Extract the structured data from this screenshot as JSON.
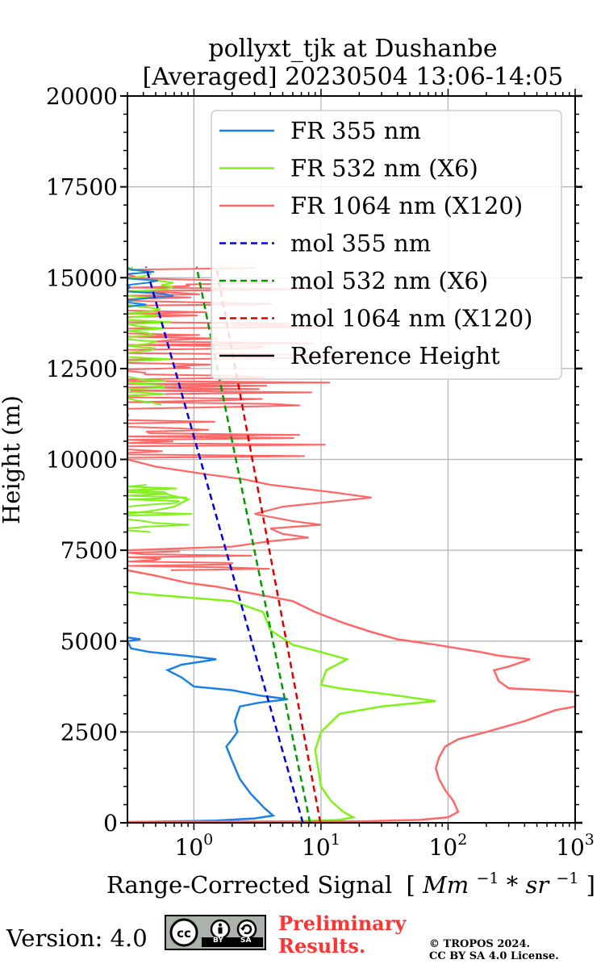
{
  "chart_data": {
    "type": "line",
    "title": [
      "pollyxt_tjk at Dushanbe",
      "[Averaged] 20230504 13:06-14:05"
    ],
    "xlabel": "Range-Corrected Signal",
    "xlabel_math": {
      "prefix": "[",
      "body": "Mm",
      "sup1": "−1",
      "mid": " * sr",
      "sup2": "−1",
      "suffix": "]"
    },
    "ylabel": "Height (m)",
    "xscale": "log",
    "xlim": [
      0.3,
      1000
    ],
    "ylim": [
      0,
      20000
    ],
    "xticks": [
      {
        "base": "10",
        "exp": "0",
        "value": 1
      },
      {
        "base": "10",
        "exp": "1",
        "value": 10
      },
      {
        "base": "10",
        "exp": "2",
        "value": 100
      },
      {
        "base": "10",
        "exp": "3",
        "value": 1000
      }
    ],
    "yticks": [
      "0",
      "2500",
      "5000",
      "7500",
      "10000",
      "12500",
      "15000",
      "17500",
      "20000"
    ],
    "grid": true,
    "legend_position": "top-right",
    "series": [
      {
        "name": "FR 355 nm",
        "color": "#1a80e6",
        "style": "solid",
        "points": [
          [
            0.3,
            20
          ],
          [
            1.5,
            60
          ],
          [
            3.0,
            120
          ],
          [
            4.2,
            200
          ],
          [
            3.6,
            400
          ],
          [
            2.8,
            800
          ],
          [
            2.3,
            1200
          ],
          [
            2.0,
            1700
          ],
          [
            1.8,
            2100
          ],
          [
            2.0,
            2300
          ],
          [
            2.2,
            2500
          ],
          [
            2.1,
            2800
          ],
          [
            2.3,
            3200
          ],
          [
            3.2,
            3300
          ],
          [
            5.5,
            3400
          ],
          [
            3.3,
            3500
          ],
          [
            2.0,
            3650
          ],
          [
            1.0,
            3750
          ],
          [
            0.8,
            4000
          ],
          [
            0.62,
            4200
          ],
          [
            0.8,
            4350
          ],
          [
            1.5,
            4500
          ],
          [
            0.85,
            4600
          ],
          [
            0.45,
            4700
          ],
          [
            0.32,
            4800
          ],
          [
            0.3,
            5000
          ],
          [
            0.38,
            5050
          ],
          [
            0.3,
            5100
          ]
        ]
      },
      {
        "name": "FR 532 nm (X6)",
        "color": "#80f21a",
        "style": "solid",
        "points": [
          [
            0.3,
            20
          ],
          [
            6,
            40
          ],
          [
            14,
            80
          ],
          [
            18,
            150
          ],
          [
            15,
            300
          ],
          [
            12,
            600
          ],
          [
            10,
            1000
          ],
          [
            9.5,
            1500
          ],
          [
            9,
            2000
          ],
          [
            10,
            2500
          ],
          [
            14,
            3000
          ],
          [
            30,
            3200
          ],
          [
            80,
            3350
          ],
          [
            40,
            3500
          ],
          [
            14,
            3700
          ],
          [
            10,
            3800
          ],
          [
            11,
            4200
          ],
          [
            16,
            4500
          ],
          [
            10,
            4700
          ],
          [
            6,
            4900
          ],
          [
            4,
            5300
          ],
          [
            3.5,
            5800
          ],
          [
            2,
            6100
          ],
          [
            0.9,
            6200
          ],
          [
            0.4,
            6300
          ],
          [
            0.3,
            6350
          ]
        ]
      },
      {
        "name": "FR 1064 nm (X120)",
        "color": "#ff6666",
        "style": "solid",
        "points": [
          [
            0.3,
            20
          ],
          [
            20,
            40
          ],
          [
            60,
            80
          ],
          [
            100,
            150
          ],
          [
            120,
            300
          ],
          [
            110,
            600
          ],
          [
            95,
            900
          ],
          [
            85,
            1200
          ],
          [
            80,
            1500
          ],
          [
            85,
            1800
          ],
          [
            95,
            2100
          ],
          [
            120,
            2300
          ],
          [
            200,
            2500
          ],
          [
            400,
            2800
          ],
          [
            700,
            3100
          ],
          [
            1000,
            3200
          ],
          [
            1000,
            3600
          ],
          [
            600,
            3650
          ],
          [
            300,
            3700
          ],
          [
            250,
            3900
          ],
          [
            230,
            4200
          ],
          [
            300,
            4300
          ],
          [
            440,
            4500
          ],
          [
            250,
            4600
          ],
          [
            180,
            4700
          ],
          [
            120,
            4800
          ],
          [
            80,
            4900
          ],
          [
            40,
            5050
          ],
          [
            25,
            5250
          ],
          [
            15,
            5500
          ],
          [
            9,
            5800
          ],
          [
            6,
            6100
          ],
          [
            3,
            6300
          ],
          [
            1.5,
            6500
          ],
          [
            0.9,
            6600
          ],
          [
            0.5,
            6800
          ],
          [
            0.3,
            6950
          ]
        ]
      },
      {
        "name": "mol 355 nm",
        "color": "#0000dd",
        "style": "dashed",
        "points": [
          [
            7.2,
            0
          ],
          [
            0.42,
            15300
          ]
        ]
      },
      {
        "name": "mol 532 nm (X6)",
        "color": "#009900",
        "style": "dashed",
        "points": [
          [
            8.2,
            0
          ],
          [
            1.05,
            15300
          ]
        ]
      },
      {
        "name": "mol 1064 nm (X120)",
        "color": "#dd0000",
        "style": "dashed",
        "points": [
          [
            9.9,
            0
          ],
          [
            1.5,
            15300
          ]
        ]
      },
      {
        "name": "Reference Height",
        "color": "#000000",
        "style": "solid",
        "points": []
      }
    ]
  },
  "footer": {
    "version": "Version: 4.0",
    "license_badge": {
      "top_left": "cc",
      "strip_left": "BY",
      "strip_right": "SA"
    },
    "preliminary": [
      "Preliminary",
      "Results."
    ],
    "copyright": [
      "© TROPOS 2024.",
      "CC BY SA 4.0 License."
    ]
  }
}
